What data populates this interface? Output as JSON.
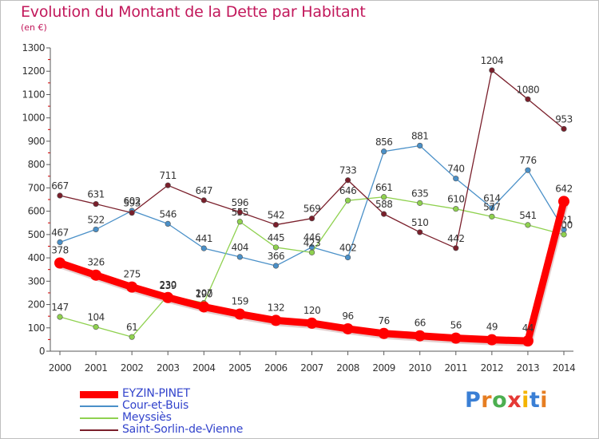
{
  "title": "Evolution du Montant de la Dette par Habitant",
  "subtitle": "(en €)",
  "brand": {
    "text": "Proxiti",
    "letter_colors": [
      "#3a7fd5",
      "#e67e22",
      "#4caf50",
      "#e53935",
      "#f4b400",
      "#3a7fd5",
      "#e67e22"
    ]
  },
  "chart_data": {
    "type": "line",
    "x": [
      "2000",
      "2001",
      "2002",
      "2003",
      "2004",
      "2005",
      "2006",
      "2007",
      "2008",
      "2009",
      "2010",
      "2011",
      "2012",
      "2013",
      "2014"
    ],
    "ylim": [
      0,
      1300
    ],
    "yticks": [
      0,
      100,
      200,
      300,
      400,
      500,
      600,
      700,
      800,
      900,
      1000,
      1100,
      1200,
      1300
    ],
    "grid": false,
    "legend_position": "bottom-left",
    "series": [
      {
        "name": "EYZIN-PINET",
        "color": "#ff0000",
        "emphasis": true,
        "values": [
          378,
          326,
          275,
          230,
          190,
          159,
          132,
          120,
          96,
          76,
          66,
          56,
          49,
          44,
          642
        ],
        "labels": [
          "378",
          "326",
          "275",
          "230",
          "190",
          "159",
          "132",
          "120",
          "96",
          "76",
          "66",
          "56",
          "49",
          "44",
          "642"
        ]
      },
      {
        "name": "Cour-et-Buis",
        "color": "#4a90c8",
        "values": [
          467,
          522,
          602,
          546,
          441,
          404,
          366,
          446,
          402,
          856,
          881,
          740,
          614,
          776,
          521
        ],
        "labels": [
          "467",
          "522",
          "602",
          "546",
          "441",
          "404",
          "366",
          "446",
          "402",
          "856",
          "881",
          "740",
          "614",
          "776",
          "521"
        ]
      },
      {
        "name": "Meyssiès",
        "color": "#8fd14f",
        "values": [
          147,
          104,
          61,
          239,
          207,
          555,
          445,
          423,
          646,
          661,
          635,
          610,
          577,
          541,
          500
        ],
        "labels": [
          "147",
          "104",
          "61",
          "239",
          "207",
          "555",
          "445",
          "423",
          "646",
          "661",
          "635",
          "610",
          "577",
          "541",
          "500"
        ]
      },
      {
        "name": "Saint-Sorlin-de-Vienne",
        "color": "#7a1f2b",
        "values": [
          667,
          631,
          593,
          711,
          647,
          596,
          542,
          569,
          733,
          588,
          510,
          442,
          1204,
          1080,
          953
        ],
        "labels": [
          "667",
          "631",
          "593",
          "711",
          "647",
          "596",
          "542",
          "569",
          "733",
          "588",
          "510",
          "442",
          "1204",
          "1080",
          "953"
        ]
      }
    ]
  }
}
